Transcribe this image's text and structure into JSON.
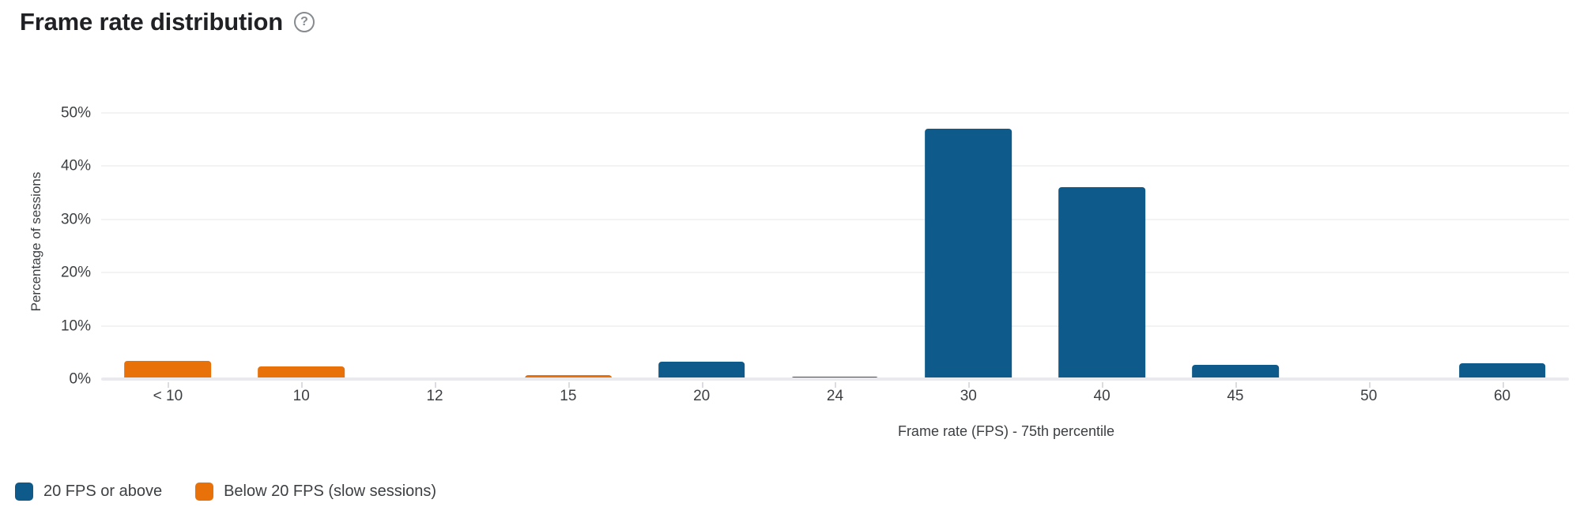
{
  "page": {
    "title": "Frame rate distribution",
    "help_glyph": "?"
  },
  "chart_data": {
    "type": "bar",
    "title": "Frame rate distribution",
    "categories": [
      "< 10",
      "10",
      "12",
      "15",
      "20",
      "24",
      "30",
      "40",
      "45",
      "50",
      "60"
    ],
    "series": [
      {
        "name": "20 FPS or above",
        "color": "#0e5a8a",
        "values": [
          null,
          null,
          null,
          null,
          3.2,
          0.5,
          47,
          36,
          2.6,
          0,
          3
        ]
      },
      {
        "name": "Below 20 FPS (slow sessions)",
        "color": "#e8710a",
        "values": [
          3.4,
          2.4,
          0,
          0.8,
          null,
          null,
          null,
          null,
          null,
          null,
          null
        ]
      }
    ],
    "xlabel": "Frame rate (FPS) - 75th percentile",
    "ylabel": "Percentage of sessions",
    "ylim": [
      0,
      50
    ],
    "y_ticks": [
      {
        "label": "50%",
        "value": 50
      },
      {
        "label": "40%",
        "value": 40
      },
      {
        "label": "30%",
        "value": 30
      },
      {
        "label": "20%",
        "value": 20
      },
      {
        "label": "10%",
        "value": 10
      },
      {
        "label": "0%",
        "value": 0
      }
    ],
    "grid": true,
    "legend_position": "bottom-left"
  },
  "colors": {
    "bar_blue": "#0e5a8a",
    "bar_orange": "#e8710a",
    "gridline": "#f1f3f4",
    "axis_line": "#e8eaed",
    "tick_text": "#3c4043",
    "title_text": "#202124",
    "help_icon": "#868b90"
  }
}
